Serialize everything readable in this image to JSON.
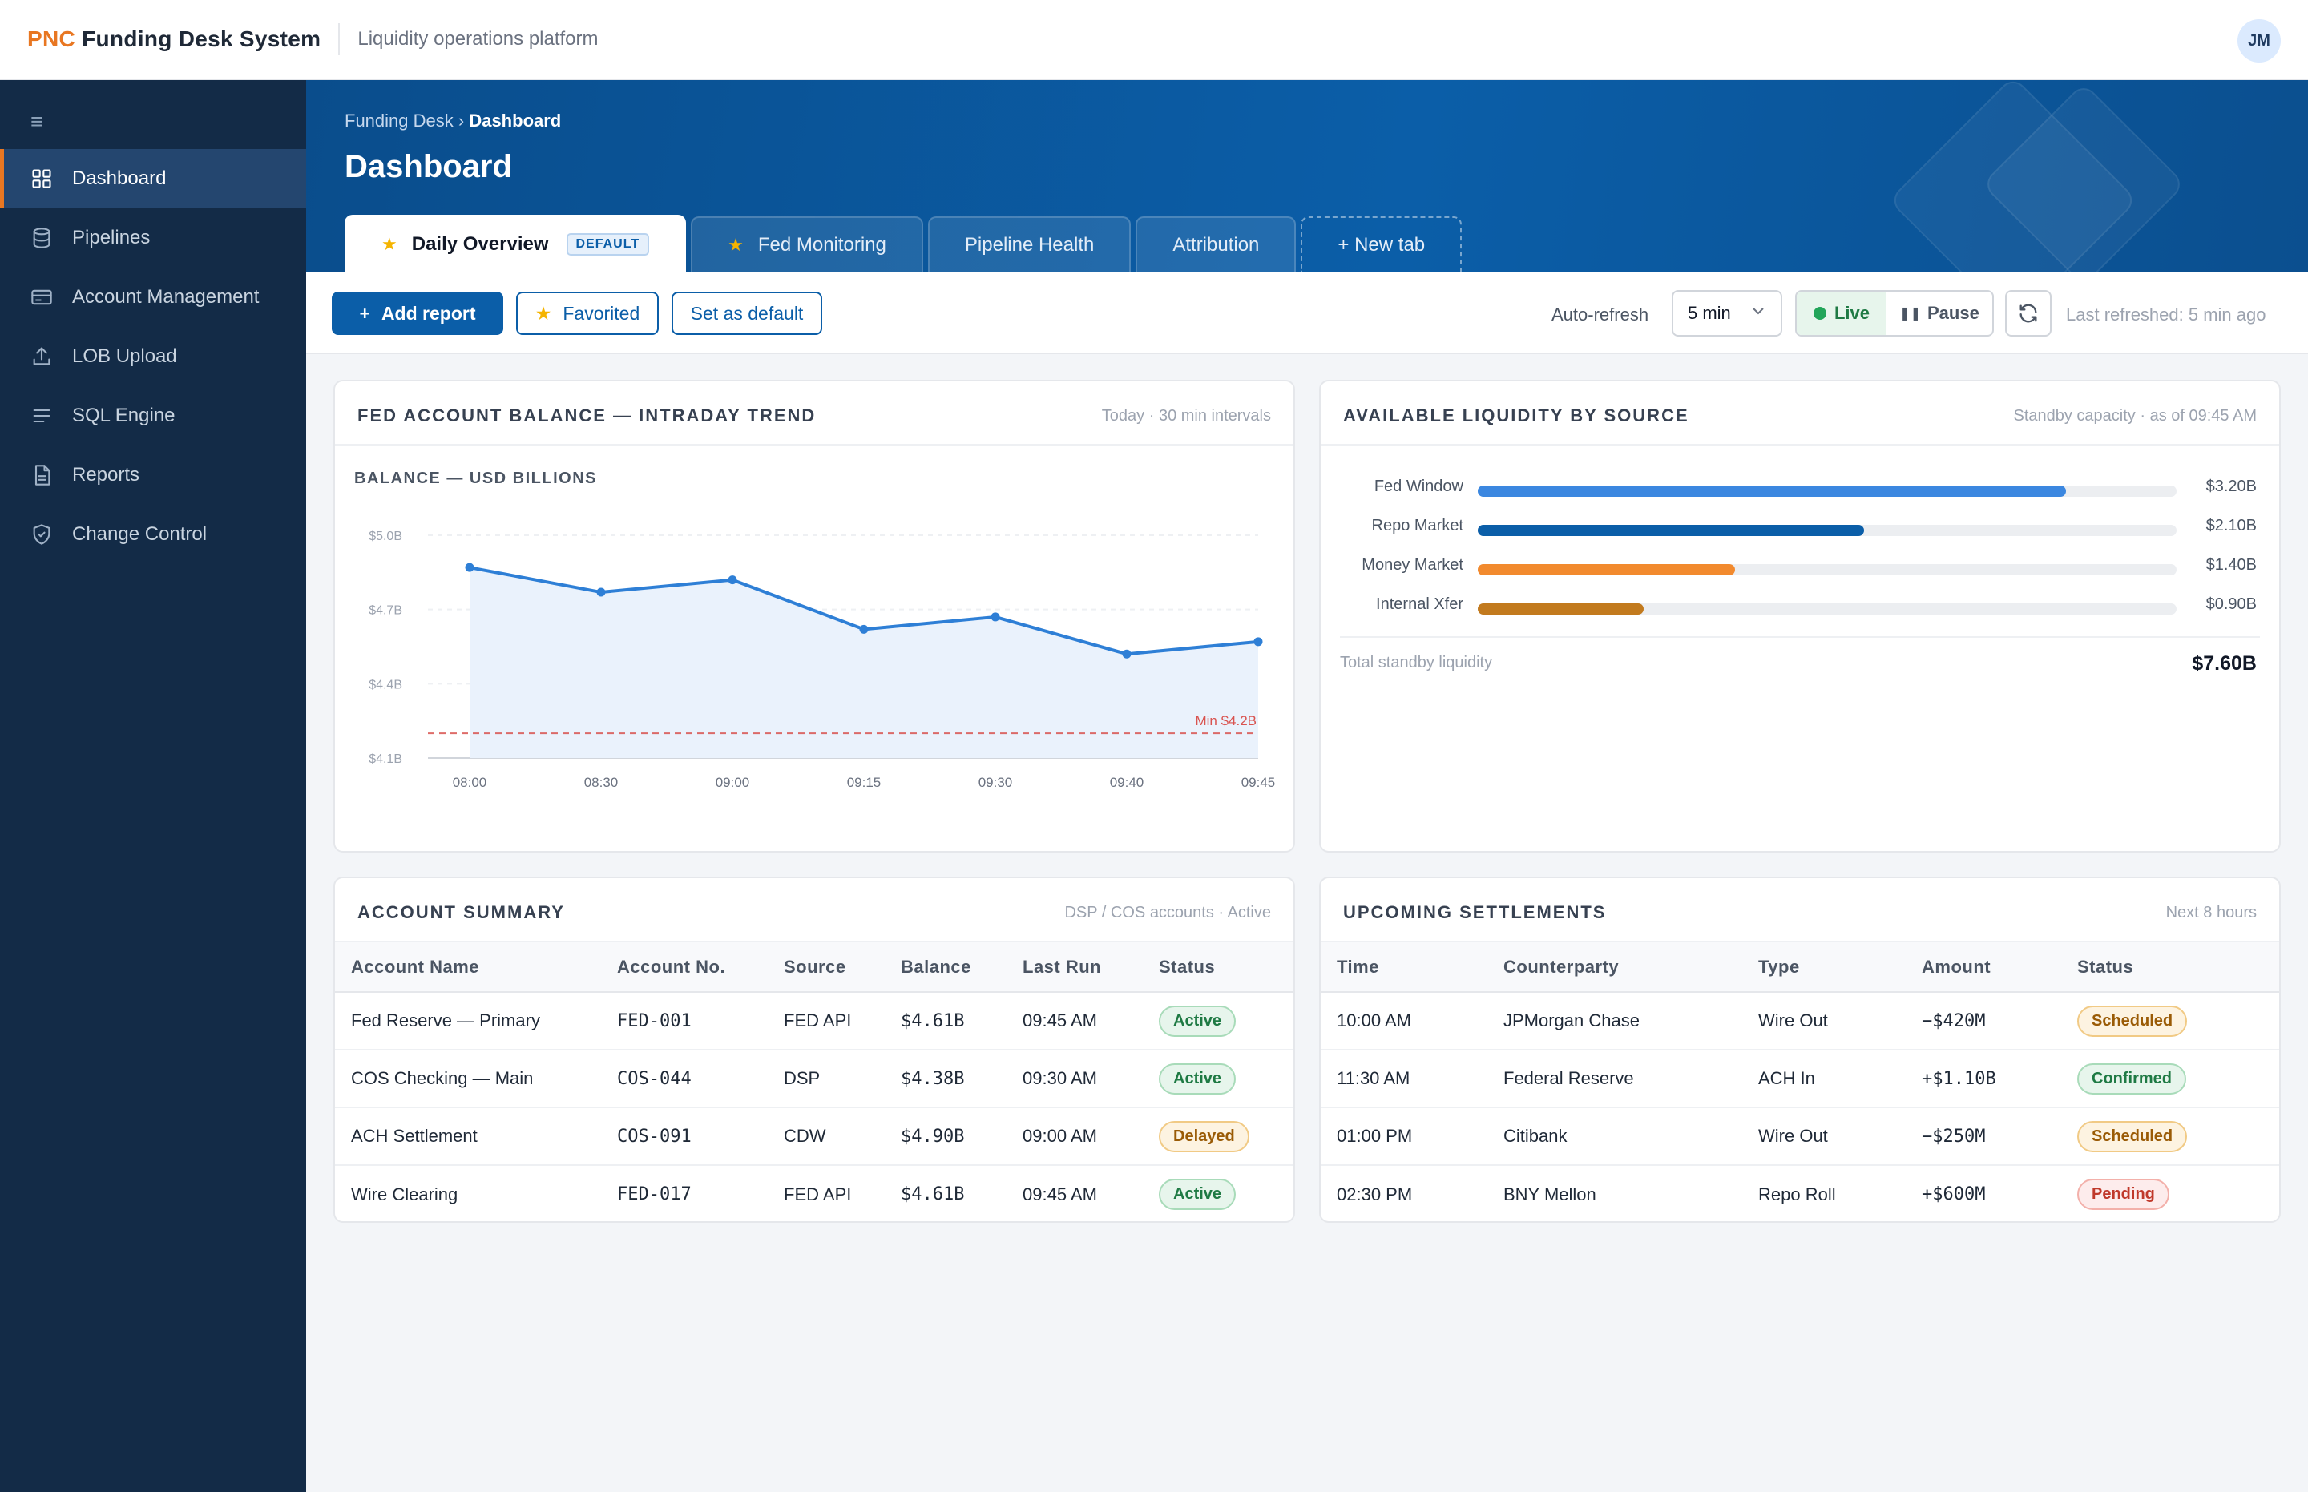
{
  "app": {
    "brand_prefix": "PNC",
    "brand_name": "Funding Desk System",
    "subtitle": "Liquidity operations platform",
    "user_initials": "JM"
  },
  "sidebar": {
    "items": [
      {
        "label": "Dashboard",
        "icon": "grid-icon",
        "active": true
      },
      {
        "label": "Pipelines",
        "icon": "database-icon"
      },
      {
        "label": "Account Management",
        "icon": "card-icon"
      },
      {
        "label": "LOB Upload",
        "icon": "upload-icon"
      },
      {
        "label": "SQL Engine",
        "icon": "lines-icon"
      },
      {
        "label": "Reports",
        "icon": "document-icon"
      },
      {
        "label": "Change Control",
        "icon": "shield-icon"
      }
    ]
  },
  "header": {
    "breadcrumb_root": "Funding Desk",
    "breadcrumb_sep": "›",
    "breadcrumb_current": "Dashboard",
    "title": "Dashboard"
  },
  "tabs": [
    {
      "label": "Daily Overview",
      "star": true,
      "badge": "DEFAULT",
      "active": true
    },
    {
      "label": "Fed Monitoring",
      "star": true
    },
    {
      "label": "Pipeline Health"
    },
    {
      "label": "Attribution"
    },
    {
      "label": "+ New tab",
      "new": true
    }
  ],
  "toolbar": {
    "add_report": "Add report",
    "favorited": "Favorited",
    "set_default": "Set as default",
    "auto_refresh_label": "Auto-refresh",
    "interval": "5 min",
    "live": "Live",
    "pause": "Pause",
    "last_refreshed": "Last refreshed: 5 min ago"
  },
  "fed_card": {
    "title": "FED ACCOUNT BALANCE — INTRADAY TREND",
    "meta": "Today · 30 min intervals",
    "chart_label": "BALANCE — USD BILLIONS"
  },
  "chart_data": {
    "type": "line",
    "title": "BALANCE — USD BILLIONS",
    "x": [
      "08:00",
      "08:30",
      "09:00",
      "09:15",
      "09:30",
      "09:40",
      "09:45"
    ],
    "series": [
      {
        "values": [
          4.87,
          4.77,
          4.82,
          4.62,
          4.67,
          4.52,
          4.57
        ]
      }
    ],
    "ylim": [
      4.1,
      5.0
    ],
    "yticks": [
      5.0,
      4.7,
      4.4,
      4.1
    ],
    "ytick_labels": [
      "$5.0B",
      "$4.7B",
      "$4.4B",
      "$4.1B"
    ],
    "threshold": {
      "value": 4.2,
      "label": "Min $4.2B",
      "color": "#d9534f"
    },
    "line_color": "#2e7fd6",
    "area_color": "#eaf2fc",
    "grid": true
  },
  "liquidity": {
    "title": "AVAILABLE LIQUIDITY BY SOURCE",
    "meta": "Standby capacity · as of 09:45 AM",
    "max": 3.8,
    "rows": [
      {
        "label": "Fed Window",
        "value": 3.2,
        "display": "$3.20B",
        "color": "#3b87e0"
      },
      {
        "label": "Repo Market",
        "value": 2.1,
        "display": "$2.10B",
        "color": "#0b5ea8"
      },
      {
        "label": "Money Market",
        "value": 1.4,
        "display": "$1.40B",
        "color": "#f28a2e"
      },
      {
        "label": "Internal Xfer",
        "value": 0.9,
        "display": "$0.90B",
        "color": "#c27a1e"
      }
    ],
    "total_label": "Total standby liquidity",
    "total_value": "$7.60B"
  },
  "accounts": {
    "title": "ACCOUNT SUMMARY",
    "meta": "DSP / COS accounts · Active",
    "columns": [
      "Account Name",
      "Account No.",
      "Source",
      "Balance",
      "Last Run",
      "Status"
    ],
    "rows": [
      {
        "name": "Fed Reserve — Primary",
        "no": "FED-001",
        "source": "FED API",
        "balance": "$4.61B",
        "last_run": "09:45 AM",
        "status": "Active",
        "status_kind": "active"
      },
      {
        "name": "COS Checking — Main",
        "no": "COS-044",
        "source": "DSP",
        "balance": "$4.38B",
        "last_run": "09:30 AM",
        "status": "Active",
        "status_kind": "active"
      },
      {
        "name": "ACH Settlement",
        "no": "COS-091",
        "source": "CDW",
        "balance": "$4.90B",
        "last_run": "09:00 AM",
        "status": "Delayed",
        "status_kind": "delayed"
      },
      {
        "name": "Wire Clearing",
        "no": "FED-017",
        "source": "FED API",
        "balance": "$4.61B",
        "last_run": "09:45 AM",
        "status": "Active",
        "status_kind": "active"
      }
    ]
  },
  "settlements": {
    "title": "UPCOMING SETTLEMENTS",
    "meta": "Next 8 hours",
    "columns": [
      "Time",
      "Counterparty",
      "Type",
      "Amount",
      "Status"
    ],
    "rows": [
      {
        "time": "10:00 AM",
        "cp": "JPMorgan Chase",
        "type": "Wire Out",
        "amount": "−$420M",
        "status": "Scheduled",
        "status_kind": "scheduled"
      },
      {
        "time": "11:30 AM",
        "cp": "Federal Reserve",
        "type": "ACH In",
        "amount": "+$1.10B",
        "status": "Confirmed",
        "status_kind": "confirmed"
      },
      {
        "time": "01:00 PM",
        "cp": "Citibank",
        "type": "Wire Out",
        "amount": "−$250M",
        "status": "Scheduled",
        "status_kind": "scheduled"
      },
      {
        "time": "02:30 PM",
        "cp": "BNY Mellon",
        "type": "Repo Roll",
        "amount": "+$600M",
        "status": "Pending",
        "status_kind": "pending"
      }
    ]
  }
}
